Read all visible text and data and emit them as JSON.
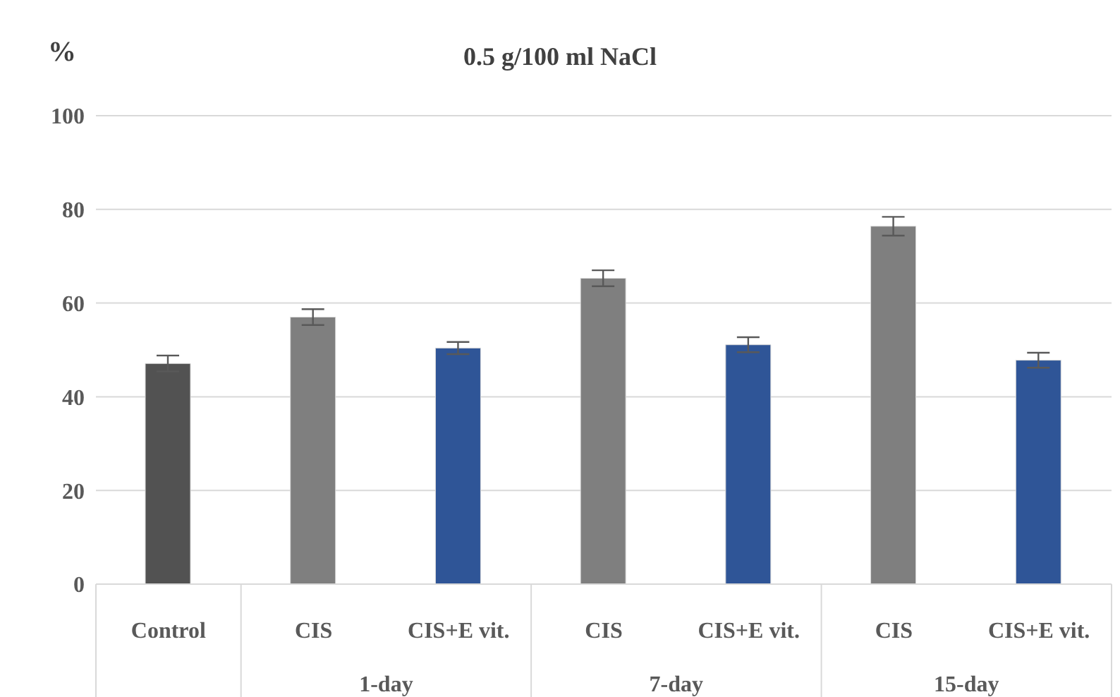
{
  "chart_data": {
    "type": "bar",
    "title": "0.5 g/100 ml NaCl",
    "ylabel": "%",
    "categories": [
      "Control",
      "CIS",
      "CIS+E vit.",
      "CIS",
      "CIS+E vit.",
      "CIS",
      "CIS+E vit."
    ],
    "values": [
      47.1,
      57.0,
      50.4,
      65.3,
      51.1,
      76.4,
      47.8
    ],
    "errors": [
      1.7,
      1.7,
      1.3,
      1.7,
      1.6,
      2.0,
      1.6
    ],
    "colors": [
      "#525252",
      "#7f7f7f",
      "#2f5597",
      "#7f7f7f",
      "#2f5597",
      "#7f7f7f",
      "#2f5597"
    ],
    "annotations": [
      "1-day",
      "7-day",
      "15-day"
    ],
    "ylim": [
      0,
      100
    ],
    "yticks": [
      0,
      20,
      40,
      60,
      80,
      100
    ],
    "grid": "y",
    "legend": false
  }
}
